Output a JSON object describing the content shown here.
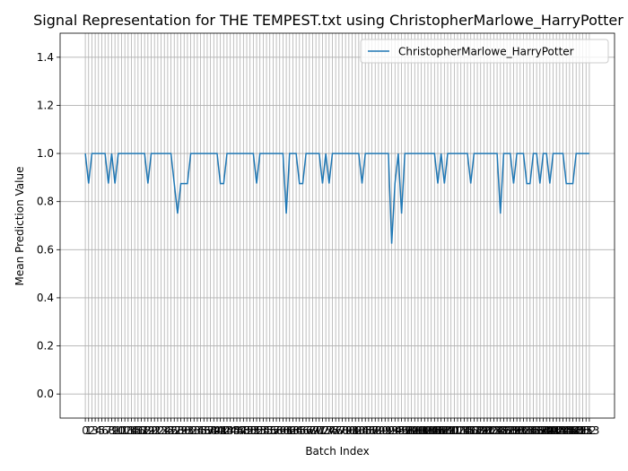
{
  "chart_data": {
    "type": "line",
    "title": "Signal Representation for THE TEMPEST.txt using ChristopherMarlowe_HarryPotter",
    "xlabel": "Batch Index",
    "ylabel": "Mean Prediction Value",
    "x": [
      0,
      1,
      2,
      3,
      4,
      5,
      6,
      7,
      8,
      9,
      10,
      11,
      12,
      13,
      14,
      15,
      16,
      17,
      18,
      19,
      20,
      21,
      22,
      23,
      24,
      25,
      26,
      27,
      28,
      29,
      30,
      31,
      32,
      33,
      34,
      35,
      36,
      37,
      38,
      39,
      40,
      41,
      42,
      43,
      44,
      45,
      46,
      47,
      48,
      49,
      50,
      51,
      52,
      53,
      54,
      55,
      56,
      57,
      58,
      59,
      60,
      61,
      62,
      63,
      64,
      65,
      66,
      67,
      68,
      69,
      70,
      71,
      72,
      73,
      74,
      75,
      76,
      77,
      78,
      79,
      80,
      81,
      82,
      83,
      84,
      85,
      86,
      87,
      88,
      89,
      90,
      91,
      92,
      93,
      94,
      95,
      96,
      97,
      98,
      99,
      100,
      101,
      102,
      103,
      104,
      105,
      106,
      107,
      108,
      109,
      110,
      111,
      112,
      113,
      114,
      115,
      116,
      117,
      118,
      119,
      120,
      121,
      122,
      123,
      124,
      125,
      126,
      127,
      128,
      129,
      130,
      131,
      132,
      133,
      134,
      135,
      136,
      137,
      138,
      139,
      140,
      141,
      142,
      143,
      144,
      145,
      146,
      147,
      148,
      149,
      150,
      151,
      152,
      153
    ],
    "series": [
      {
        "name": "ChristopherMarlowe_HarryPotter",
        "color": "#1f77b4",
        "values": [
          1,
          0.875,
          1,
          1,
          1,
          1,
          1,
          0.875,
          1,
          0.875,
          1,
          1,
          1,
          1,
          1,
          1,
          1,
          1,
          1,
          0.875,
          1,
          1,
          1,
          1,
          1,
          1,
          1,
          0.875,
          0.75,
          0.875,
          0.875,
          0.875,
          1,
          1,
          1,
          1,
          1,
          1,
          1,
          1,
          1,
          0.875,
          0.875,
          1,
          1,
          1,
          1,
          1,
          1,
          1,
          1,
          1,
          0.875,
          1,
          1,
          1,
          1,
          1,
          1,
          1,
          1,
          0.75,
          1,
          1,
          1,
          0.875,
          0.875,
          1,
          1,
          1,
          1,
          1,
          0.875,
          1,
          0.875,
          1,
          1,
          1,
          1,
          1,
          1,
          1,
          1,
          1,
          0.875,
          1,
          1,
          1,
          1,
          1,
          1,
          1,
          1,
          0.625,
          0.875,
          1,
          0.75,
          1,
          1,
          1,
          1,
          1,
          1,
          1,
          1,
          1,
          1,
          0.875,
          1,
          0.875,
          1,
          1,
          1,
          1,
          1,
          1,
          1,
          0.875,
          1,
          1,
          1,
          1,
          1,
          1,
          1,
          1,
          0.75,
          1,
          1,
          1,
          0.875,
          1,
          1,
          1,
          0.875,
          0.875,
          1,
          1,
          0.875,
          1,
          1,
          0.875,
          1,
          1,
          1,
          1,
          0.875,
          0.875,
          0.875,
          1,
          1,
          1,
          1,
          1
        ]
      }
    ],
    "xlim": [
      -7.65,
      160.65
    ],
    "xticks": [
      0,
      1,
      2,
      3,
      4,
      5,
      6,
      7,
      8,
      9,
      10,
      11,
      12,
      13,
      14,
      15,
      16,
      17,
      18,
      19,
      20,
      21,
      22,
      23,
      24,
      25,
      26,
      27,
      28,
      29,
      30,
      31,
      32,
      33,
      34,
      35,
      36,
      37,
      38,
      39,
      40,
      41,
      42,
      43,
      44,
      45,
      46,
      47,
      48,
      49,
      50,
      51,
      52,
      53,
      54,
      55,
      56,
      57,
      58,
      59,
      60,
      61,
      62,
      63,
      64,
      65,
      66,
      67,
      68,
      69,
      70,
      71,
      72,
      73,
      74,
      75,
      76,
      77,
      78,
      79,
      80,
      81,
      82,
      83,
      84,
      85,
      86,
      87,
      88,
      89,
      90,
      91,
      92,
      93,
      94,
      95,
      96,
      97,
      98,
      99,
      100,
      101,
      102,
      103,
      104,
      105,
      106,
      107,
      108,
      109,
      110,
      111,
      112,
      113,
      114,
      115,
      116,
      117,
      118,
      119,
      120,
      121,
      122,
      123,
      124,
      125,
      126,
      127,
      128,
      129,
      130,
      131,
      132,
      133,
      134,
      135,
      136,
      137,
      138,
      139,
      140,
      141,
      142,
      143,
      144,
      145,
      146,
      147,
      148,
      149,
      150,
      151,
      152,
      153
    ],
    "ylim": [
      -0.1,
      1.5
    ],
    "yticks": [
      {
        "value": 0,
        "label": "0.0"
      },
      {
        "value": 0.2,
        "label": "0.2"
      },
      {
        "value": 0.4,
        "label": "0.4"
      },
      {
        "value": 0.6,
        "label": "0.6"
      },
      {
        "value": 0.8,
        "label": "0.8"
      },
      {
        "value": 1,
        "label": "1.0"
      },
      {
        "value": 1.2,
        "label": "1.2"
      },
      {
        "value": 1.4,
        "label": "1.4"
      }
    ],
    "grid": true,
    "legend": "upper right"
  }
}
